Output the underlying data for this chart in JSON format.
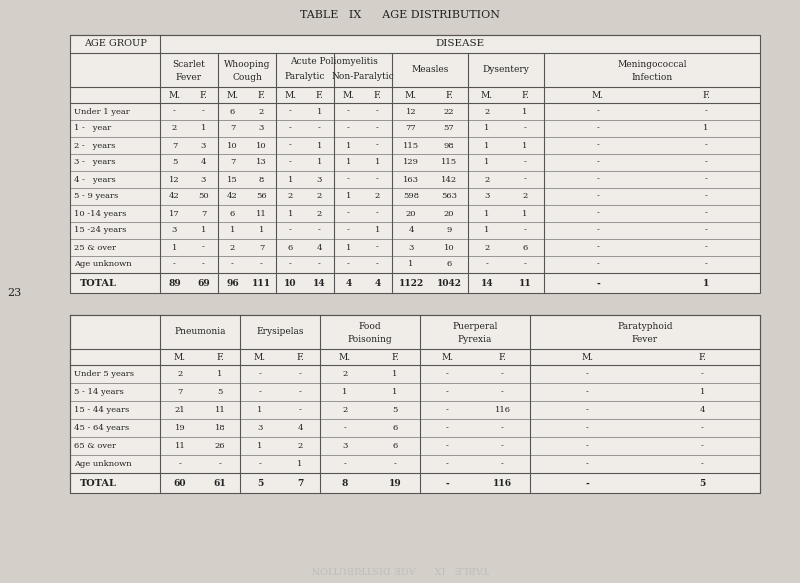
{
  "title": "TABLE   IX      AGE DISTRIBUTION",
  "page_bg": "#d4cfc8",
  "table_bg": "#f0ede8",
  "line_color": "#555555",
  "text_color": "#222222",
  "top_table": {
    "age_groups": [
      "Under 1 year",
      "1 -   year",
      "2 -   years",
      "3 -   years",
      "4 -   years",
      "5 - 9 years",
      "10 -14 years",
      "15 -24 years",
      "25 & over",
      "Age unknown"
    ],
    "g_names": [
      "Scarlet\nFever",
      "Whooping\nCough",
      "Acute Poliomyelitis\nParalytic  |Non-Paralytic",
      "Measles",
      "Dysentery",
      "Meningococcal\nInfection"
    ],
    "g_names_split": [
      [
        "Scarlet",
        "Fever"
      ],
      [
        "Whooping",
        "Cough"
      ],
      [
        "Acute Poliomyelitis",
        "Paralytic"
      ],
      [
        "Non-Paralytic"
      ],
      [
        "Measles"
      ],
      [
        "Dysentery"
      ],
      [
        "Meningococcal",
        "Infection"
      ]
    ],
    "data": [
      [
        "-",
        "-",
        "6",
        "2",
        "-",
        "1",
        "-",
        "-",
        "12",
        "22",
        "2",
        "1",
        "-",
        "-"
      ],
      [
        "2",
        "1",
        "7",
        "3",
        "-",
        "-",
        "-",
        "-",
        "77",
        "57",
        "1",
        "-",
        "-",
        "1"
      ],
      [
        "7",
        "3",
        "10",
        "10",
        "-",
        "1",
        "1",
        "-",
        "115",
        "98",
        "1",
        "1",
        "-",
        "-"
      ],
      [
        "5",
        "4",
        "7",
        "13",
        "-",
        "1",
        "1",
        "1",
        "129",
        "115",
        "1",
        "-",
        "-",
        "-"
      ],
      [
        "12",
        "3",
        "15",
        "8",
        "1",
        "3",
        "-",
        "-",
        "163",
        "142",
        "2",
        "-",
        "-",
        "-"
      ],
      [
        "42",
        "50",
        "42",
        "56",
        "2",
        "2",
        "1",
        "2",
        "598",
        "563",
        "3",
        "2",
        "-",
        "-"
      ],
      [
        "17",
        "7",
        "6",
        "11",
        "1",
        "2",
        "-",
        "-",
        "20",
        "20",
        "1",
        "1",
        "-",
        "-"
      ],
      [
        "3",
        "1",
        "1",
        "1",
        "-",
        "-",
        "-",
        "1",
        "4",
        "9",
        "1",
        "-",
        "-",
        "-"
      ],
      [
        "1",
        "-",
        "2",
        "7",
        "6",
        "4",
        "1",
        "-",
        "3",
        "10",
        "2",
        "6",
        "-",
        "-"
      ],
      [
        "-",
        "-",
        "-",
        "-",
        "-",
        "-",
        "-",
        "-",
        "1",
        "6",
        "-",
        "-",
        "-",
        "-"
      ]
    ],
    "totals": [
      "89",
      "69",
      "96",
      "111",
      "10",
      "14",
      "4",
      "4",
      "1122",
      "1042",
      "14",
      "11",
      "-",
      "1"
    ]
  },
  "bottom_table": {
    "age_groups": [
      "Under 5 years",
      "5 - 14 years",
      "15 - 44 years",
      "45 - 64 years",
      "65 & over",
      "Age unknown"
    ],
    "g_names_split": [
      [
        "Pneumonia"
      ],
      [
        "Erysipelas"
      ],
      [
        "Food",
        "Poisoning"
      ],
      [
        "Puerperal",
        "Pyrexia"
      ],
      [
        "Paratyphoid",
        "Fever"
      ]
    ],
    "data": [
      [
        "2",
        "1",
        "-",
        "-",
        "2",
        "1",
        "-",
        "-",
        "-",
        "-"
      ],
      [
        "7",
        "5",
        "-",
        "-",
        "1",
        "1",
        "-",
        "-",
        "-",
        "1"
      ],
      [
        "21",
        "11",
        "1",
        "-",
        "2",
        "5",
        "-",
        "116",
        "-",
        "4"
      ],
      [
        "19",
        "18",
        "3",
        "4",
        "-",
        "6",
        "-",
        "-",
        "-",
        "-"
      ],
      [
        "11",
        "26",
        "1",
        "2",
        "3",
        "6",
        "-",
        "-",
        "-",
        "-"
      ],
      [
        "-",
        "-",
        "-",
        "1",
        "-",
        "-",
        "-",
        "-",
        "-",
        "-"
      ]
    ],
    "totals": [
      "60",
      "61",
      "5",
      "7",
      "8",
      "19",
      "-",
      "116",
      "-",
      "5"
    ]
  }
}
